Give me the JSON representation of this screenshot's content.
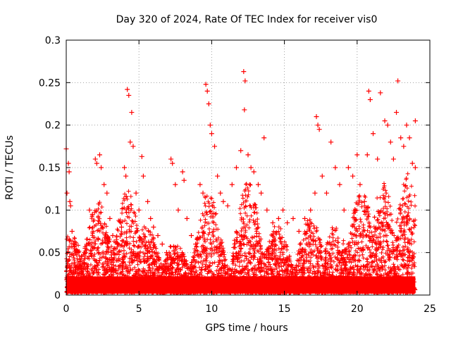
{
  "chart_data": {
    "type": "scatter",
    "title": "Day 320 of 2024, Rate Of TEC Index for receiver vis0",
    "xlabel": "GPS time / hours",
    "ylabel": "ROTI / TECUs",
    "xlim": [
      0,
      25
    ],
    "ylim": [
      0,
      0.3
    ],
    "xticks": [
      0,
      5,
      10,
      15,
      20,
      25
    ],
    "xtick_labels": [
      "0",
      "5",
      "10",
      "15",
      "20",
      "25"
    ],
    "yticks": [
      0,
      0.05,
      0.1,
      0.15,
      0.2,
      0.25,
      0.3
    ],
    "ytick_labels": [
      "0",
      "0.05",
      "0.1",
      "0.15",
      "0.2",
      "0.25",
      "0.3"
    ],
    "grid": true,
    "legend": "none",
    "marker": "plus",
    "color": "#ff0000",
    "series": [
      {
        "values": [
          [
            0.0,
            0.172
          ],
          [
            0.05,
            0.12
          ],
          [
            0.15,
            0.155
          ],
          [
            0.2,
            0.145
          ],
          [
            0.25,
            0.11
          ],
          [
            0.3,
            0.105
          ],
          [
            0.4,
            0.075
          ],
          [
            0.6,
            0.06
          ],
          [
            0.8,
            0.05
          ],
          [
            1.0,
            0.04
          ],
          [
            1.3,
            0.055
          ],
          [
            1.6,
            0.1
          ],
          [
            1.8,
            0.095
          ],
          [
            2.0,
            0.16
          ],
          [
            2.1,
            0.155
          ],
          [
            2.3,
            0.165
          ],
          [
            2.4,
            0.15
          ],
          [
            2.6,
            0.13
          ],
          [
            2.8,
            0.12
          ],
          [
            3.0,
            0.09
          ],
          [
            3.2,
            0.07
          ],
          [
            3.5,
            0.06
          ],
          [
            3.8,
            0.08
          ],
          [
            4.0,
            0.15
          ],
          [
            4.1,
            0.14
          ],
          [
            4.2,
            0.242
          ],
          [
            4.3,
            0.235
          ],
          [
            4.5,
            0.215
          ],
          [
            4.4,
            0.18
          ],
          [
            4.6,
            0.175
          ],
          [
            4.8,
            0.12
          ],
          [
            5.0,
            0.1
          ],
          [
            5.2,
            0.163
          ],
          [
            5.3,
            0.14
          ],
          [
            5.6,
            0.11
          ],
          [
            5.8,
            0.09
          ],
          [
            6.0,
            0.08
          ],
          [
            6.3,
            0.07
          ],
          [
            6.6,
            0.06
          ],
          [
            6.9,
            0.05
          ],
          [
            7.2,
            0.16
          ],
          [
            7.3,
            0.155
          ],
          [
            7.5,
            0.13
          ],
          [
            7.7,
            0.1
          ],
          [
            8.0,
            0.145
          ],
          [
            8.1,
            0.135
          ],
          [
            8.3,
            0.09
          ],
          [
            8.6,
            0.07
          ],
          [
            8.9,
            0.06
          ],
          [
            9.2,
            0.13
          ],
          [
            9.4,
            0.12
          ],
          [
            9.6,
            0.248
          ],
          [
            9.7,
            0.24
          ],
          [
            9.8,
            0.225
          ],
          [
            9.9,
            0.2
          ],
          [
            10.0,
            0.19
          ],
          [
            10.2,
            0.175
          ],
          [
            10.4,
            0.14
          ],
          [
            10.6,
            0.12
          ],
          [
            10.8,
            0.11
          ],
          [
            11.1,
            0.105
          ],
          [
            11.4,
            0.13
          ],
          [
            11.7,
            0.15
          ],
          [
            12.0,
            0.17
          ],
          [
            12.2,
            0.263
          ],
          [
            12.3,
            0.252
          ],
          [
            12.25,
            0.218
          ],
          [
            12.5,
            0.165
          ],
          [
            12.7,
            0.15
          ],
          [
            12.9,
            0.145
          ],
          [
            13.2,
            0.13
          ],
          [
            13.4,
            0.12
          ],
          [
            13.6,
            0.185
          ],
          [
            13.8,
            0.1
          ],
          [
            14.2,
            0.085
          ],
          [
            14.6,
            0.09
          ],
          [
            14.9,
            0.1
          ],
          [
            15.2,
            0.085
          ],
          [
            15.6,
            0.09
          ],
          [
            16.0,
            0.075
          ],
          [
            16.4,
            0.09
          ],
          [
            16.8,
            0.1
          ],
          [
            17.1,
            0.12
          ],
          [
            17.2,
            0.21
          ],
          [
            17.3,
            0.2
          ],
          [
            17.4,
            0.195
          ],
          [
            17.6,
            0.14
          ],
          [
            17.9,
            0.12
          ],
          [
            18.2,
            0.18
          ],
          [
            18.5,
            0.15
          ],
          [
            18.8,
            0.13
          ],
          [
            19.1,
            0.1
          ],
          [
            19.4,
            0.15
          ],
          [
            19.7,
            0.14
          ],
          [
            20.0,
            0.165
          ],
          [
            20.2,
            0.13
          ],
          [
            20.5,
            0.11
          ],
          [
            20.7,
            0.165
          ],
          [
            20.8,
            0.24
          ],
          [
            20.9,
            0.23
          ],
          [
            21.1,
            0.19
          ],
          [
            21.4,
            0.16
          ],
          [
            21.6,
            0.238
          ],
          [
            21.9,
            0.205
          ],
          [
            22.1,
            0.2
          ],
          [
            22.3,
            0.18
          ],
          [
            22.5,
            0.16
          ],
          [
            22.7,
            0.215
          ],
          [
            22.8,
            0.252
          ],
          [
            23.0,
            0.185
          ],
          [
            23.2,
            0.175
          ],
          [
            23.4,
            0.2
          ],
          [
            23.6,
            0.185
          ],
          [
            23.8,
            0.155
          ],
          [
            24.0,
            0.205
          ],
          [
            24.0,
            0.15
          ]
        ]
      }
    ]
  }
}
